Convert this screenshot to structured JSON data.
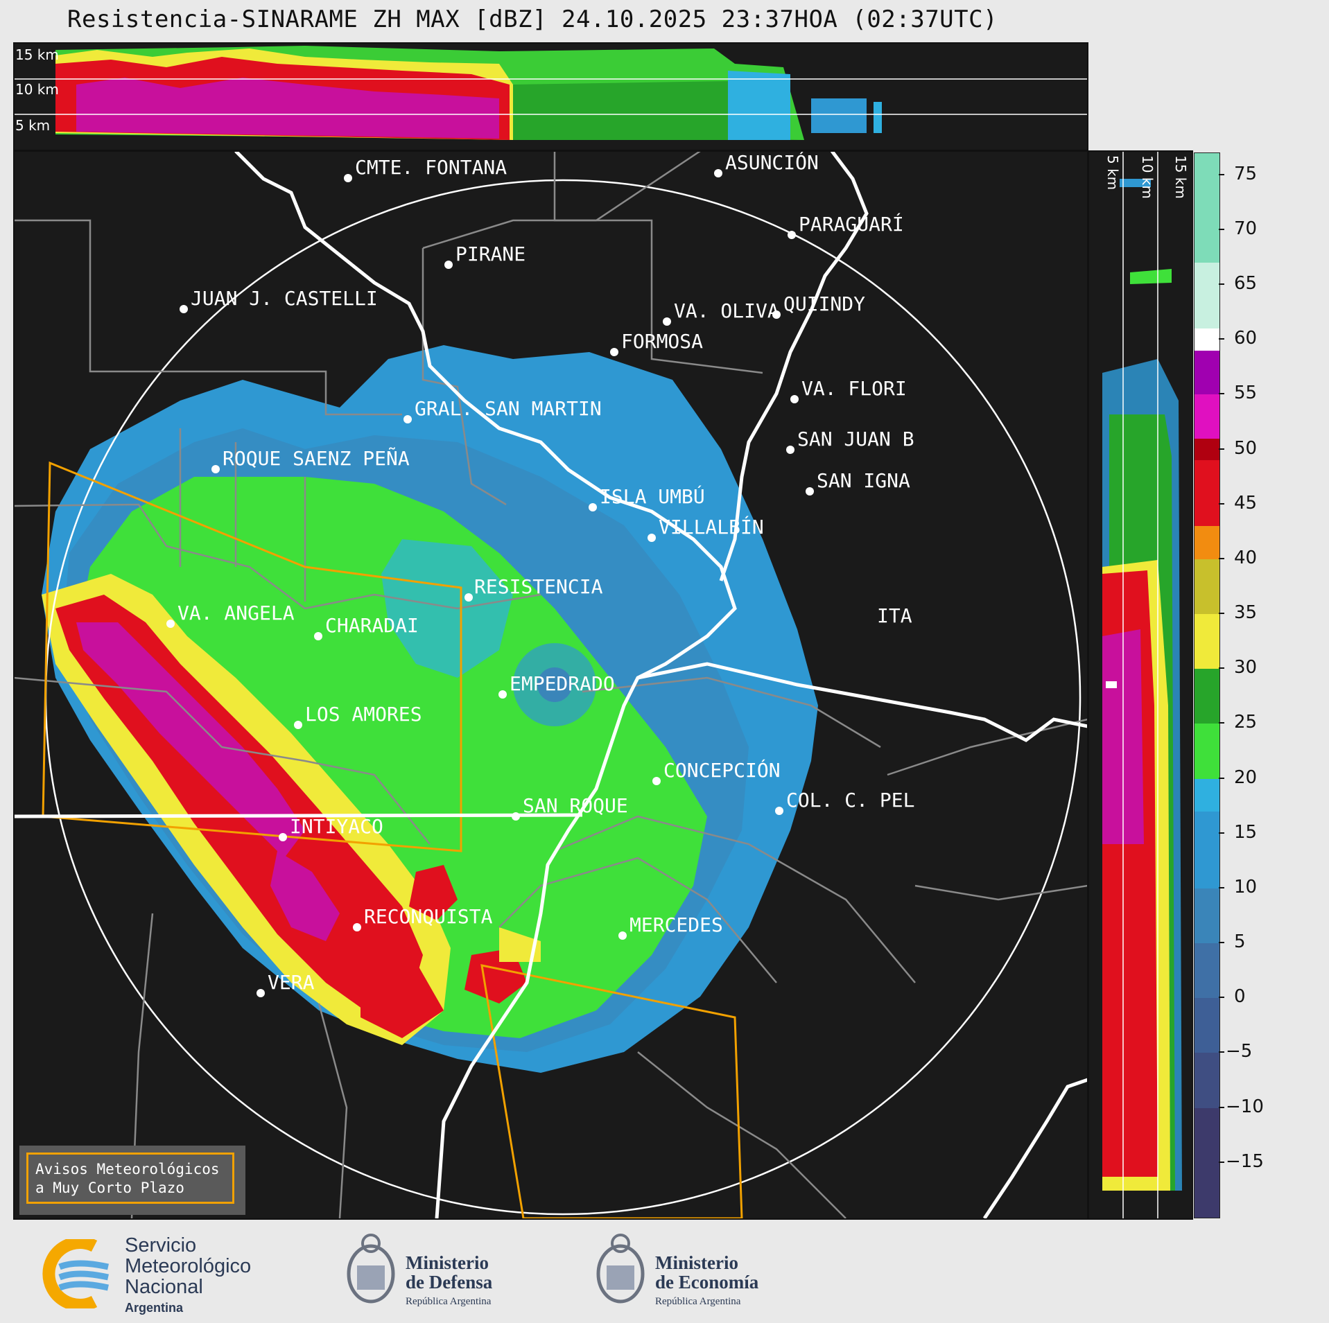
{
  "title": "Resistencia-SINARAME ZH MAX [dBZ] 24.10.2025 23:37HOA (02:37UTC)",
  "top_panel_labels": [
    "15 km",
    "10 km",
    "5 km"
  ],
  "side_panel_labels": [
    "5 km",
    "10 km",
    "15 km"
  ],
  "colorbar": {
    "ticks": [
      "75",
      "70",
      "65",
      "60",
      "55",
      "50",
      "45",
      "40",
      "35",
      "30",
      "25",
      "20",
      "15",
      "10",
      "5",
      "0",
      "−5",
      "−10",
      "−15"
    ],
    "segments": [
      {
        "from": -20,
        "to": -10,
        "color": "#3d3a6b"
      },
      {
        "from": -10,
        "to": -5,
        "color": "#3f4e82"
      },
      {
        "from": -5,
        "to": 0,
        "color": "#3e5f96"
      },
      {
        "from": 0,
        "to": 5,
        "color": "#3f70a6"
      },
      {
        "from": 5,
        "to": 10,
        "color": "#3a85b9"
      },
      {
        "from": 10,
        "to": 17,
        "color": "#2f98d2"
      },
      {
        "from": 17,
        "to": 20,
        "color": "#2fb0e0"
      },
      {
        "from": 20,
        "to": 25,
        "color": "#3fe03a"
      },
      {
        "from": 25,
        "to": 30,
        "color": "#27a52a"
      },
      {
        "from": 30,
        "to": 35,
        "color": "#f0ea3a"
      },
      {
        "from": 35,
        "to": 40,
        "color": "#c8c02c"
      },
      {
        "from": 40,
        "to": 43,
        "color": "#f28c10"
      },
      {
        "from": 43,
        "to": 49,
        "color": "#e0101e"
      },
      {
        "from": 49,
        "to": 51,
        "color": "#b00010"
      },
      {
        "from": 51,
        "to": 55,
        "color": "#e010c0"
      },
      {
        "from": 55,
        "to": 59,
        "color": "#a000b0"
      },
      {
        "from": 59,
        "to": 61,
        "color": "#ffffff"
      },
      {
        "from": 61,
        "to": 67,
        "color": "#c8f0e0"
      },
      {
        "from": 67,
        "to": 77,
        "color": "#7edcb8"
      }
    ]
  },
  "cities": [
    {
      "name": "CMTE. FONTANA"
    },
    {
      "name": "ASUNCIÓN"
    },
    {
      "name": "PARAGUARÍ"
    },
    {
      "name": "PIRANE"
    },
    {
      "name": "JUAN J. CASTELLI"
    },
    {
      "name": "VA. OLIVA"
    },
    {
      "name": "QUIINDY"
    },
    {
      "name": "FORMOSA"
    },
    {
      "name": "VA. FLORI"
    },
    {
      "name": "GRAL. SAN MARTIN"
    },
    {
      "name": "SAN JUAN B"
    },
    {
      "name": "ROQUE SAENZ PEÑA"
    },
    {
      "name": "SAN IGNA"
    },
    {
      "name": "ISLA UMBÚ"
    },
    {
      "name": "VILLALBÍN"
    },
    {
      "name": "RESISTENCIA"
    },
    {
      "name": "ITA"
    },
    {
      "name": "VA. ANGELA"
    },
    {
      "name": "CHARADAI"
    },
    {
      "name": "EMPEDRADO"
    },
    {
      "name": "LOS AMORES"
    },
    {
      "name": "CONCEPCIÓN"
    },
    {
      "name": "SAN ROQUE"
    },
    {
      "name": "COL. C. PEL"
    },
    {
      "name": "INTIYACO"
    },
    {
      "name": "RECONQUISTA"
    },
    {
      "name": "MERCEDES"
    },
    {
      "name": "VERA"
    }
  ],
  "aviso": {
    "line1": "Avisos Meteorológicos",
    "line2": "a Muy Corto Plazo"
  },
  "logos": {
    "smn": {
      "line1": "Servicio",
      "line2": "Meteorológico",
      "line3": "Nacional",
      "line4": "Argentina"
    },
    "defensa": {
      "line1": "Ministerio",
      "line2": "de Defensa",
      "line3": "República Argentina"
    },
    "economia": {
      "line1": "Ministerio",
      "line2": "de Economía",
      "line3": "República Argentina"
    }
  }
}
